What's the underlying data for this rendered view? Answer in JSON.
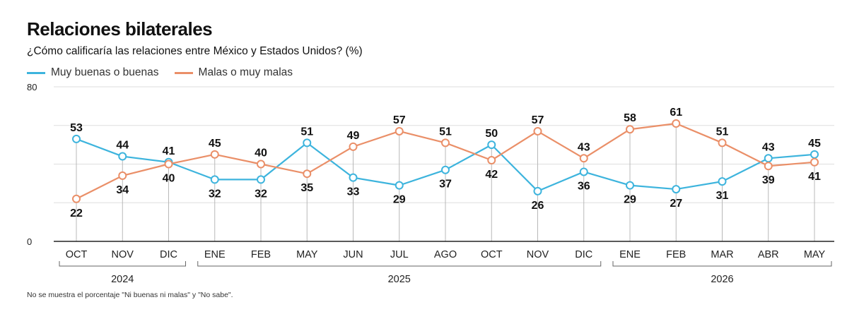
{
  "title": "Relaciones bilaterales",
  "subtitle": "¿Cómo calificaría las relaciones entre México y Estados Unidos? (%)",
  "footnote": "No se muestra el porcentaje \"Ni buenas ni malas\" y \"No sabe\".",
  "colors": {
    "series1": "#3db4dd",
    "series2": "#ea8f68",
    "grid": "#dedede",
    "axis": "#222222"
  },
  "chart_data": {
    "type": "line",
    "title": "Relaciones bilaterales",
    "subtitle": "¿Cómo calificaría las relaciones entre México y Estados Unidos? (%)",
    "categories": [
      "OCT",
      "NOV",
      "DIC",
      "ENE",
      "FEB",
      "MAY",
      "JUN",
      "JUL",
      "AGO",
      "OCT",
      "NOV",
      "DIC",
      "ENE",
      "FEB",
      "MAR",
      "ABR",
      "MAY"
    ],
    "year_groups": [
      {
        "label": "2024",
        "start": 0,
        "end": 2
      },
      {
        "label": "2025",
        "start": 3,
        "end": 11
      },
      {
        "label": "2026",
        "start": 12,
        "end": 16
      }
    ],
    "series": [
      {
        "name": "Muy buenas o buenas",
        "color": "#3db4dd",
        "values": [
          53,
          44,
          41,
          32,
          32,
          51,
          33,
          29,
          37,
          50,
          26,
          36,
          29,
          27,
          31,
          43,
          45
        ]
      },
      {
        "name": "Malas o muy malas",
        "color": "#ea8f68",
        "values": [
          22,
          34,
          40,
          45,
          40,
          35,
          49,
          57,
          51,
          42,
          57,
          43,
          58,
          61,
          51,
          39,
          41
        ]
      }
    ],
    "ylim": [
      0,
      80
    ],
    "yticks": [
      0,
      80
    ],
    "grid": true,
    "legend_position": "top-left"
  }
}
